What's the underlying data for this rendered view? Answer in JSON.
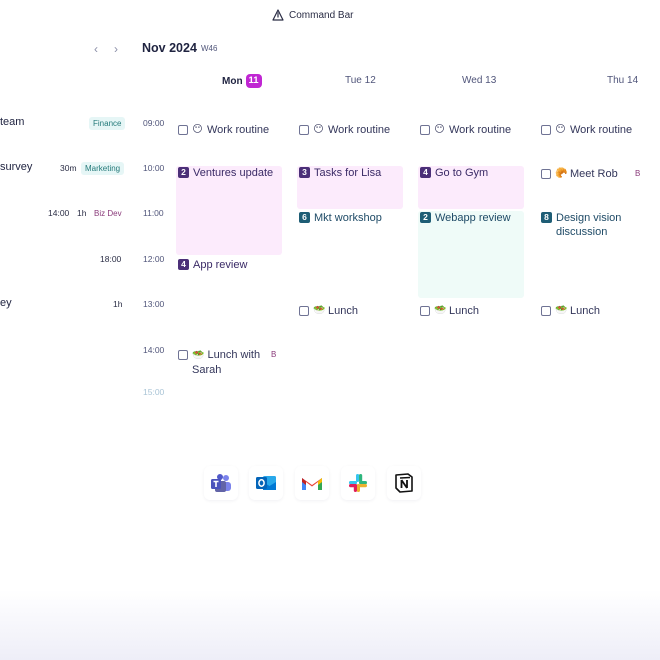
{
  "command_bar": {
    "label": "Command Bar",
    "icon": "command-bar-icon"
  },
  "calendar": {
    "month": "Nov 2024",
    "week": "W46",
    "days": [
      {
        "name": "Mon",
        "num": "11",
        "today": true
      },
      {
        "name": "Tue 12"
      },
      {
        "name": "Wed 13"
      },
      {
        "name": "Thu 14"
      }
    ],
    "times": [
      "09:00",
      "10:00",
      "11:00",
      "12:00",
      "13:00",
      "14:00",
      "15:00"
    ]
  },
  "tasks": [
    {
      "title": "team",
      "tag": "Finance"
    },
    {
      "title": "survey",
      "duration": "30m",
      "tag": "Marketing"
    },
    {
      "time": "14:00",
      "duration": "1h",
      "tag": "Biz Dev"
    },
    {
      "time": "18:00"
    },
    {
      "title": "ey",
      "duration": "1h"
    }
  ],
  "events": {
    "mon": {
      "work": "Work routine",
      "ventures": {
        "num": "2",
        "title": "Ventures update"
      },
      "app_review": {
        "num": "4",
        "title": "App review"
      },
      "lunch": "Lunch with Sarah",
      "lunch_suffix": "B"
    },
    "tue": {
      "work": "Work routine",
      "tasks": {
        "num": "3",
        "title": "Tasks for Lisa"
      },
      "mkt": {
        "num": "6",
        "title": "Mkt workshop"
      },
      "lunch": "Lunch"
    },
    "wed": {
      "work": "Work routine",
      "gym": {
        "num": "4",
        "title": "Go to Gym"
      },
      "webapp": {
        "num": "2",
        "title": "Webapp review"
      },
      "lunch": "Lunch"
    },
    "thu": {
      "work": "Work routine",
      "meet": "Meet Rob",
      "meet_suffix": "B",
      "design": {
        "num": "8",
        "title": "Design vision discussion"
      },
      "lunch": "Lunch"
    }
  },
  "integrations": [
    "microsoft-teams-icon",
    "outlook-icon",
    "gmail-icon",
    "slack-icon",
    "notion-icon"
  ],
  "colors": {
    "accent": "#c026d3",
    "event_pink": "#fcebfc",
    "event_mint": "#effbf8"
  }
}
